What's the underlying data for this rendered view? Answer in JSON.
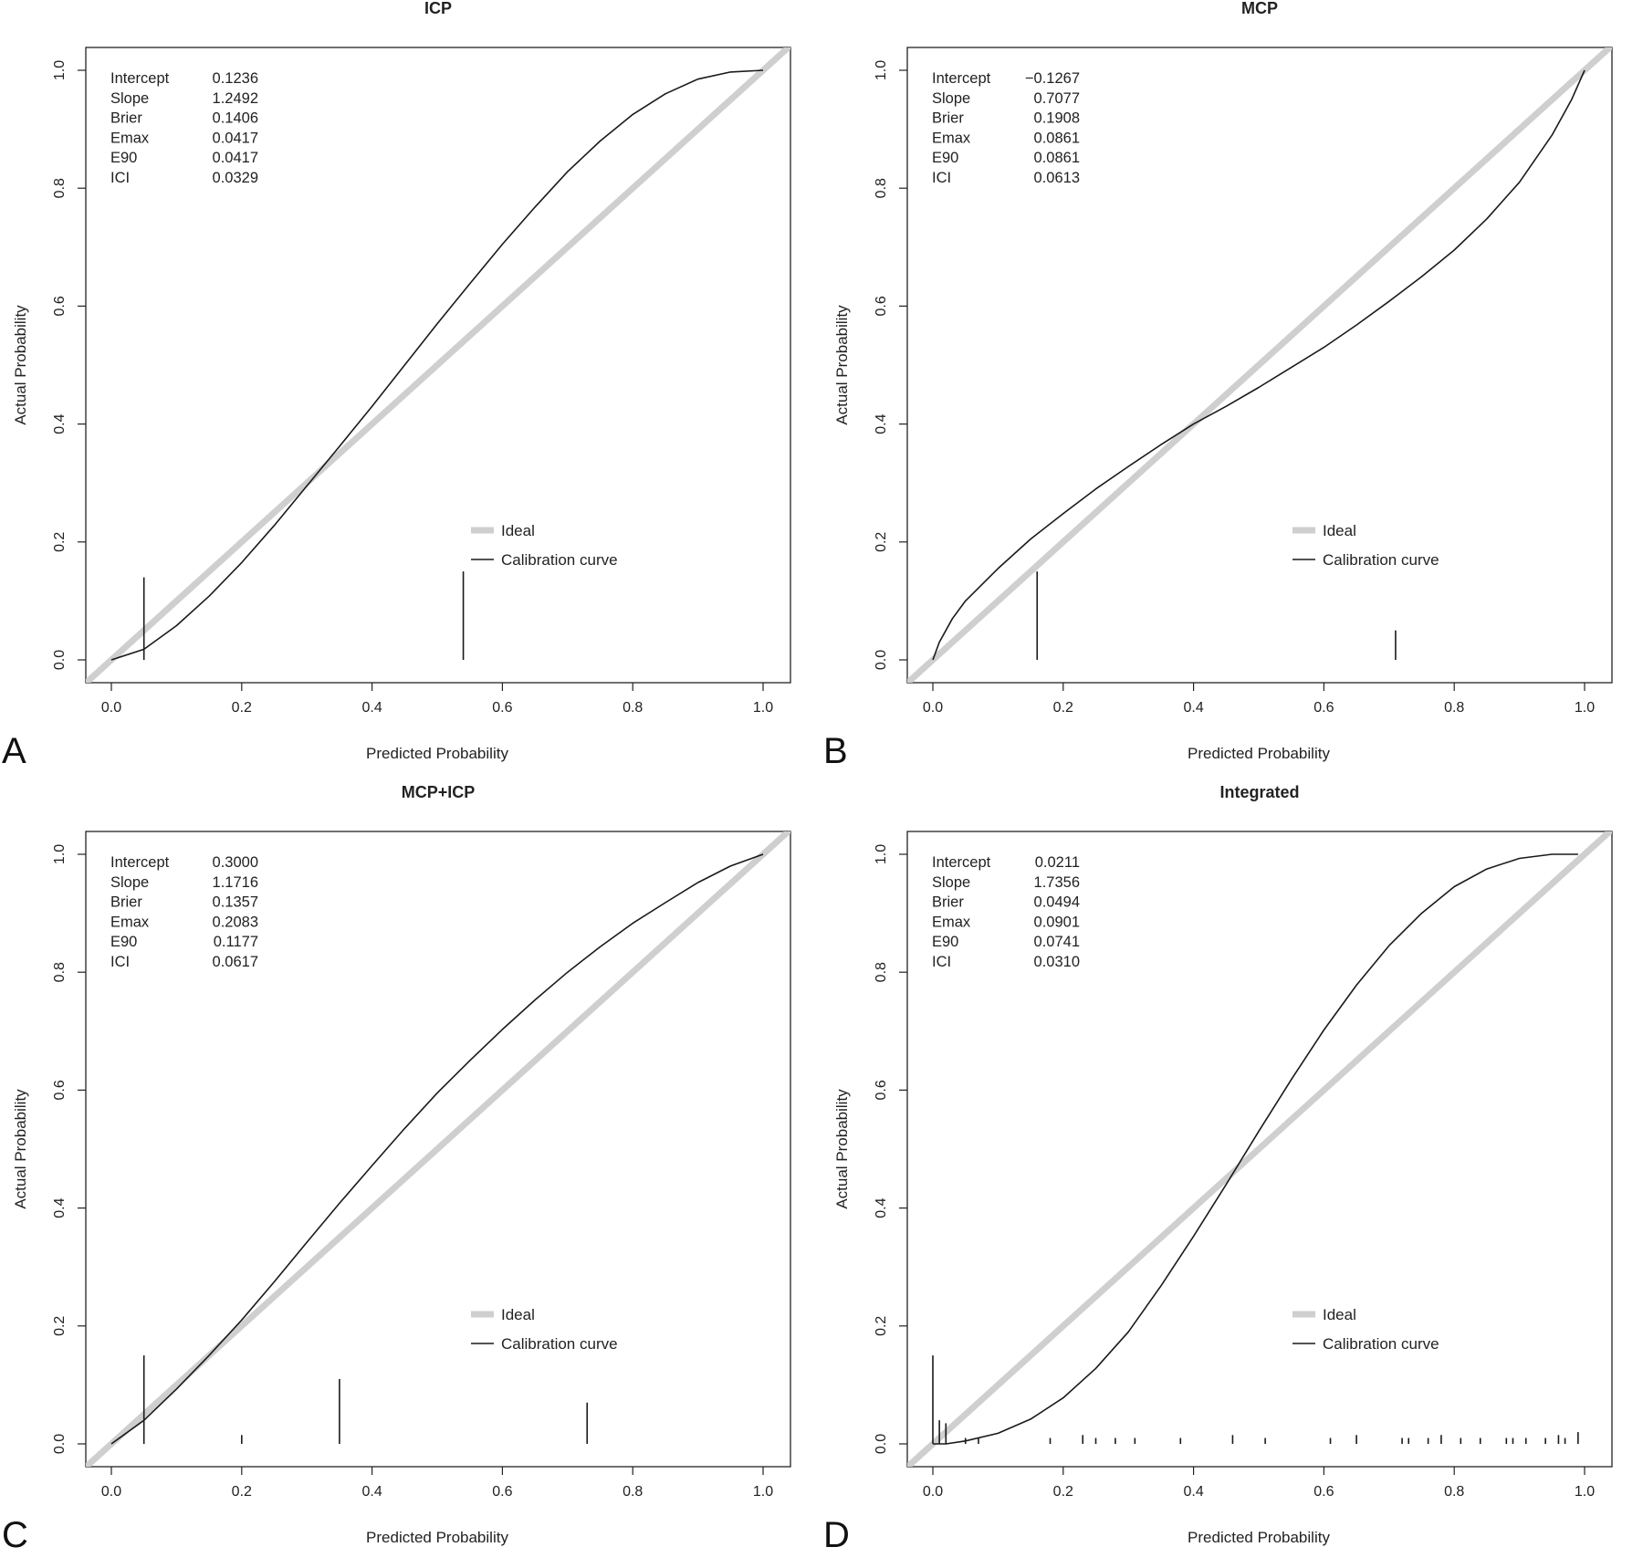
{
  "chart_data": [
    {
      "type": "line",
      "panel": "A",
      "title": "ICP",
      "xlabel": "Predicted Probability",
      "ylabel": "Actual Probability",
      "xlim": [
        0,
        1
      ],
      "ylim": [
        0,
        1
      ],
      "xticks": [
        "0.0",
        "0.2",
        "0.4",
        "0.6",
        "0.8",
        "1.0"
      ],
      "yticks": [
        "0.0",
        "0.2",
        "0.4",
        "0.6",
        "0.8",
        "1.0"
      ],
      "stats": [
        {
          "label": "Intercept",
          "value": "0.1236"
        },
        {
          "label": "Slope",
          "value": "1.2492"
        },
        {
          "label": "Brier",
          "value": "0.1406"
        },
        {
          "label": "Emax",
          "value": "0.0417"
        },
        {
          "label": "E90",
          "value": "0.0417"
        },
        {
          "label": "ICI",
          "value": "0.0329"
        }
      ],
      "legend": {
        "position": "bottom-right",
        "entries": [
          "Ideal",
          "Calibration curve"
        ]
      },
      "ideal_color": "#cfcfcf",
      "curve_color": "#1a1a1a",
      "curve": {
        "x": [
          0,
          0.05,
          0.1,
          0.15,
          0.2,
          0.25,
          0.3,
          0.35,
          0.4,
          0.45,
          0.5,
          0.55,
          0.6,
          0.65,
          0.7,
          0.75,
          0.8,
          0.85,
          0.9,
          0.95,
          1.0
        ],
        "y": [
          0,
          0.018,
          0.058,
          0.108,
          0.165,
          0.228,
          0.295,
          0.362,
          0.43,
          0.5,
          0.57,
          0.638,
          0.705,
          0.768,
          0.828,
          0.88,
          0.925,
          0.96,
          0.985,
          0.997,
          1.0
        ]
      },
      "rug": [
        {
          "x": 0.05,
          "h": 0.14
        },
        {
          "x": 0.54,
          "h": 0.15
        }
      ]
    },
    {
      "type": "line",
      "panel": "B",
      "title": "MCP",
      "xlabel": "Predicted Probability",
      "ylabel": "Actual Probability",
      "xlim": [
        0,
        1
      ],
      "ylim": [
        0,
        1
      ],
      "xticks": [
        "0.0",
        "0.2",
        "0.4",
        "0.6",
        "0.8",
        "1.0"
      ],
      "yticks": [
        "0.0",
        "0.2",
        "0.4",
        "0.6",
        "0.8",
        "1.0"
      ],
      "stats": [
        {
          "label": "Intercept",
          "value": "−0.1267"
        },
        {
          "label": "Slope",
          "value": "0.7077"
        },
        {
          "label": "Brier",
          "value": "0.1908"
        },
        {
          "label": "Emax",
          "value": "0.0861"
        },
        {
          "label": "E90",
          "value": "0.0861"
        },
        {
          "label": "ICI",
          "value": "0.0613"
        }
      ],
      "legend": {
        "position": "bottom-right",
        "entries": [
          "Ideal",
          "Calibration curve"
        ]
      },
      "ideal_color": "#cfcfcf",
      "curve_color": "#1a1a1a",
      "curve": {
        "x": [
          0,
          0.01,
          0.03,
          0.05,
          0.1,
          0.15,
          0.2,
          0.25,
          0.3,
          0.35,
          0.4,
          0.45,
          0.5,
          0.55,
          0.6,
          0.65,
          0.7,
          0.75,
          0.8,
          0.85,
          0.9,
          0.95,
          0.98,
          1.0
        ],
        "y": [
          0,
          0.03,
          0.07,
          0.1,
          0.155,
          0.205,
          0.248,
          0.29,
          0.328,
          0.365,
          0.4,
          0.43,
          0.462,
          0.496,
          0.53,
          0.568,
          0.608,
          0.65,
          0.695,
          0.748,
          0.81,
          0.89,
          0.95,
          1.0
        ]
      },
      "rug": [
        {
          "x": 0.16,
          "h": 0.15
        },
        {
          "x": 0.71,
          "h": 0.05
        }
      ]
    },
    {
      "type": "line",
      "panel": "C",
      "title": "MCP+ICP",
      "xlabel": "Predicted Probability",
      "ylabel": "Actual Probability",
      "xlim": [
        0,
        1
      ],
      "ylim": [
        0,
        1
      ],
      "xticks": [
        "0.0",
        "0.2",
        "0.4",
        "0.6",
        "0.8",
        "1.0"
      ],
      "yticks": [
        "0.0",
        "0.2",
        "0.4",
        "0.6",
        "0.8",
        "1.0"
      ],
      "stats": [
        {
          "label": "Intercept",
          "value": "0.3000"
        },
        {
          "label": "Slope",
          "value": "1.1716"
        },
        {
          "label": "Brier",
          "value": "0.1357"
        },
        {
          "label": "Emax",
          "value": "0.2083"
        },
        {
          "label": "E90",
          "value": "0.1177"
        },
        {
          "label": "ICI",
          "value": "0.0617"
        }
      ],
      "legend": {
        "position": "bottom-right",
        "entries": [
          "Ideal",
          "Calibration curve"
        ]
      },
      "ideal_color": "#cfcfcf",
      "curve_color": "#1a1a1a",
      "curve": {
        "x": [
          0,
          0.05,
          0.1,
          0.15,
          0.2,
          0.25,
          0.3,
          0.35,
          0.4,
          0.45,
          0.5,
          0.55,
          0.6,
          0.65,
          0.7,
          0.75,
          0.8,
          0.85,
          0.9,
          0.95,
          1.0
        ],
        "y": [
          0,
          0.04,
          0.093,
          0.15,
          0.21,
          0.275,
          0.342,
          0.408,
          0.472,
          0.535,
          0.595,
          0.65,
          0.703,
          0.753,
          0.8,
          0.843,
          0.883,
          0.918,
          0.952,
          0.98,
          1.0
        ]
      },
      "rug": [
        {
          "x": 0.05,
          "h": 0.15
        },
        {
          "x": 0.2,
          "h": 0.015
        },
        {
          "x": 0.35,
          "h": 0.11
        },
        {
          "x": 0.73,
          "h": 0.07
        }
      ]
    },
    {
      "type": "line",
      "panel": "D",
      "title": "Integrated",
      "xlabel": "Predicted Probability",
      "ylabel": "Actual Probability",
      "xlim": [
        0,
        1
      ],
      "ylim": [
        0,
        1
      ],
      "xticks": [
        "0.0",
        "0.2",
        "0.4",
        "0.6",
        "0.8",
        "1.0"
      ],
      "yticks": [
        "0.0",
        "0.2",
        "0.4",
        "0.6",
        "0.8",
        "1.0"
      ],
      "stats": [
        {
          "label": "Intercept",
          "value": "0.0211"
        },
        {
          "label": "Slope",
          "value": "1.7356"
        },
        {
          "label": "Brier",
          "value": "0.0494"
        },
        {
          "label": "Emax",
          "value": "0.0901"
        },
        {
          "label": "E90",
          "value": "0.0741"
        },
        {
          "label": "ICI",
          "value": "0.0310"
        }
      ],
      "legend": {
        "position": "bottom-right",
        "entries": [
          "Ideal",
          "Calibration curve"
        ]
      },
      "ideal_color": "#cfcfcf",
      "curve_color": "#1a1a1a",
      "curve": {
        "x": [
          0,
          0.02,
          0.05,
          0.1,
          0.15,
          0.2,
          0.25,
          0.3,
          0.35,
          0.4,
          0.45,
          0.5,
          0.55,
          0.6,
          0.65,
          0.7,
          0.75,
          0.8,
          0.85,
          0.9,
          0.95,
          0.99
        ],
        "y": [
          0,
          0.0,
          0.005,
          0.018,
          0.042,
          0.078,
          0.128,
          0.19,
          0.268,
          0.352,
          0.44,
          0.53,
          0.618,
          0.702,
          0.778,
          0.845,
          0.9,
          0.945,
          0.975,
          0.993,
          1.0,
          1.0
        ]
      },
      "rug": [
        {
          "x": 0.0,
          "h": 0.15
        },
        {
          "x": 0.01,
          "h": 0.04
        },
        {
          "x": 0.02,
          "h": 0.035
        },
        {
          "x": 0.05,
          "h": 0.01
        },
        {
          "x": 0.07,
          "h": 0.01
        },
        {
          "x": 0.18,
          "h": 0.01
        },
        {
          "x": 0.23,
          "h": 0.015
        },
        {
          "x": 0.25,
          "h": 0.01
        },
        {
          "x": 0.28,
          "h": 0.01
        },
        {
          "x": 0.31,
          "h": 0.01
        },
        {
          "x": 0.38,
          "h": 0.01
        },
        {
          "x": 0.46,
          "h": 0.015
        },
        {
          "x": 0.51,
          "h": 0.01
        },
        {
          "x": 0.61,
          "h": 0.01
        },
        {
          "x": 0.65,
          "h": 0.015
        },
        {
          "x": 0.72,
          "h": 0.01
        },
        {
          "x": 0.73,
          "h": 0.01
        },
        {
          "x": 0.76,
          "h": 0.01
        },
        {
          "x": 0.78,
          "h": 0.015
        },
        {
          "x": 0.81,
          "h": 0.01
        },
        {
          "x": 0.84,
          "h": 0.01
        },
        {
          "x": 0.88,
          "h": 0.01
        },
        {
          "x": 0.89,
          "h": 0.01
        },
        {
          "x": 0.91,
          "h": 0.01
        },
        {
          "x": 0.94,
          "h": 0.01
        },
        {
          "x": 0.96,
          "h": 0.015
        },
        {
          "x": 0.97,
          "h": 0.01
        },
        {
          "x": 0.99,
          "h": 0.02
        }
      ]
    }
  ]
}
